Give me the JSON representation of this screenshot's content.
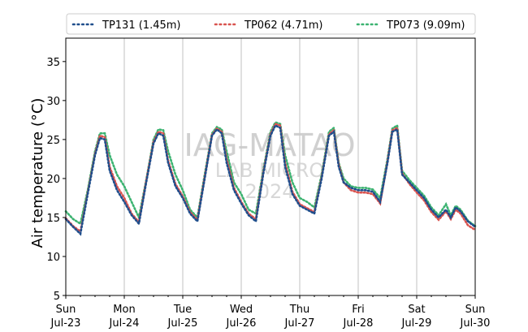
{
  "chart_data": {
    "type": "line",
    "title": "",
    "xlabel": "",
    "ylabel": "Air temperature (°C)",
    "ylim": [
      5,
      38
    ],
    "xlim": [
      "2024-07-23",
      "2024-07-30"
    ],
    "yticks": [
      "5",
      "10",
      "15",
      "20",
      "25",
      "30",
      "35"
    ],
    "xtick_labels": [
      {
        "day": "Sun",
        "date": "Jul-23"
      },
      {
        "day": "Mon",
        "date": "Jul-24"
      },
      {
        "day": "Tue",
        "date": "Jul-25"
      },
      {
        "day": "Wed",
        "date": "Jul-26"
      },
      {
        "day": "Thu",
        "date": "Jul-27"
      },
      {
        "day": "Fri",
        "date": "Jul-28"
      },
      {
        "day": "Sat",
        "date": "Jul-29"
      },
      {
        "day": "Sun",
        "date": "Jul-30"
      }
    ],
    "grid": "vertical",
    "legend_position": "top",
    "watermark": [
      "IAG-MATAO",
      "LAB MICRO",
      "2024"
    ],
    "series": [
      {
        "name": "TP131 (1.45m)",
        "color": "#1f4e8c",
        "points": [
          [
            "2024-07-23 00:00",
            14.8
          ],
          [
            "2024-07-23 03:00",
            13.8
          ],
          [
            "2024-07-23 06:00",
            12.9
          ],
          [
            "2024-07-23 09:00",
            18.0
          ],
          [
            "2024-07-23 12:00",
            23.0
          ],
          [
            "2024-07-23 14:00",
            25.2
          ],
          [
            "2024-07-23 16:00",
            25.0
          ],
          [
            "2024-07-23 18:00",
            21.0
          ],
          [
            "2024-07-23 21:00",
            18.5
          ],
          [
            "2024-07-24 00:00",
            17.0
          ],
          [
            "2024-07-24 03:00",
            15.3
          ],
          [
            "2024-07-24 06:00",
            14.2
          ],
          [
            "2024-07-24 09:00",
            19.5
          ],
          [
            "2024-07-24 12:00",
            24.5
          ],
          [
            "2024-07-24 14:00",
            25.8
          ],
          [
            "2024-07-24 16:00",
            25.5
          ],
          [
            "2024-07-24 18:00",
            22.0
          ],
          [
            "2024-07-24 21:00",
            19.0
          ],
          [
            "2024-07-25 00:00",
            17.5
          ],
          [
            "2024-07-25 03:00",
            15.5
          ],
          [
            "2024-07-25 06:00",
            14.5
          ],
          [
            "2024-07-25 09:00",
            20.0
          ],
          [
            "2024-07-25 12:00",
            25.5
          ],
          [
            "2024-07-25 14:00",
            26.3
          ],
          [
            "2024-07-25 16:00",
            25.8
          ],
          [
            "2024-07-25 18:00",
            22.0
          ],
          [
            "2024-07-25 21:00",
            18.5
          ],
          [
            "2024-07-26 00:00",
            16.8
          ],
          [
            "2024-07-26 03:00",
            15.3
          ],
          [
            "2024-07-26 06:00",
            14.5
          ],
          [
            "2024-07-26 09:00",
            20.5
          ],
          [
            "2024-07-26 12:00",
            25.5
          ],
          [
            "2024-07-26 14:00",
            26.8
          ],
          [
            "2024-07-26 16:00",
            26.5
          ],
          [
            "2024-07-26 18:00",
            21.5
          ],
          [
            "2024-07-26 21:00",
            18.0
          ],
          [
            "2024-07-27 00:00",
            16.5
          ],
          [
            "2024-07-27 03:00",
            16.0
          ],
          [
            "2024-07-27 06:00",
            15.5
          ],
          [
            "2024-07-27 09:00",
            20.0
          ],
          [
            "2024-07-27 12:00",
            25.5
          ],
          [
            "2024-07-27 14:00",
            26.0
          ],
          [
            "2024-07-27 16:00",
            21.5
          ],
          [
            "2024-07-27 18:00",
            19.5
          ],
          [
            "2024-07-27 21:00",
            18.8
          ],
          [
            "2024-07-28 00:00",
            18.5
          ],
          [
            "2024-07-28 03:00",
            18.5
          ],
          [
            "2024-07-28 06:00",
            18.3
          ],
          [
            "2024-07-28 09:00",
            17.0
          ],
          [
            "2024-07-28 12:00",
            22.0
          ],
          [
            "2024-07-28 14:00",
            26.0
          ],
          [
            "2024-07-28 16:00",
            26.3
          ],
          [
            "2024-07-28 18:00",
            20.5
          ],
          [
            "2024-07-28 21:00",
            19.5
          ],
          [
            "2024-07-29 00:00",
            18.5
          ],
          [
            "2024-07-29 03:00",
            17.5
          ],
          [
            "2024-07-29 06:00",
            16.0
          ],
          [
            "2024-07-29 09:00",
            15.0
          ],
          [
            "2024-07-29 12:00",
            16.0
          ],
          [
            "2024-07-29 14:00",
            15.0
          ],
          [
            "2024-07-29 16:00",
            16.3
          ],
          [
            "2024-07-29 18:00",
            15.8
          ],
          [
            "2024-07-29 21:00",
            14.5
          ],
          [
            "2024-07-30 00:00",
            13.8
          ]
        ]
      },
      {
        "name": "TP062 (4.71m)",
        "color": "#d9534f",
        "points": [
          [
            "2024-07-23 00:00",
            14.9
          ],
          [
            "2024-07-23 03:00",
            13.9
          ],
          [
            "2024-07-23 06:00",
            13.2
          ],
          [
            "2024-07-23 09:00",
            18.2
          ],
          [
            "2024-07-23 12:00",
            23.2
          ],
          [
            "2024-07-23 14:00",
            25.5
          ],
          [
            "2024-07-23 16:00",
            25.3
          ],
          [
            "2024-07-23 18:00",
            21.5
          ],
          [
            "2024-07-23 21:00",
            19.0
          ],
          [
            "2024-07-24 00:00",
            17.5
          ],
          [
            "2024-07-24 03:00",
            15.5
          ],
          [
            "2024-07-24 06:00",
            14.4
          ],
          [
            "2024-07-24 09:00",
            19.7
          ],
          [
            "2024-07-24 12:00",
            24.7
          ],
          [
            "2024-07-24 14:00",
            26.0
          ],
          [
            "2024-07-24 16:00",
            25.8
          ],
          [
            "2024-07-24 18:00",
            22.3
          ],
          [
            "2024-07-24 21:00",
            19.3
          ],
          [
            "2024-07-25 00:00",
            17.7
          ],
          [
            "2024-07-25 03:00",
            15.7
          ],
          [
            "2024-07-25 06:00",
            14.7
          ],
          [
            "2024-07-25 09:00",
            20.2
          ],
          [
            "2024-07-25 12:00",
            25.6
          ],
          [
            "2024-07-25 14:00",
            26.4
          ],
          [
            "2024-07-25 16:00",
            26.0
          ],
          [
            "2024-07-25 18:00",
            22.5
          ],
          [
            "2024-07-25 21:00",
            18.8
          ],
          [
            "2024-07-26 00:00",
            17.0
          ],
          [
            "2024-07-26 03:00",
            15.5
          ],
          [
            "2024-07-26 06:00",
            14.8
          ],
          [
            "2024-07-26 09:00",
            20.7
          ],
          [
            "2024-07-26 12:00",
            25.7
          ],
          [
            "2024-07-26 14:00",
            27.0
          ],
          [
            "2024-07-26 16:00",
            26.8
          ],
          [
            "2024-07-26 18:00",
            22.0
          ],
          [
            "2024-07-26 21:00",
            18.3
          ],
          [
            "2024-07-27 00:00",
            16.7
          ],
          [
            "2024-07-27 03:00",
            16.2
          ],
          [
            "2024-07-27 06:00",
            15.7
          ],
          [
            "2024-07-27 09:00",
            20.2
          ],
          [
            "2024-07-27 12:00",
            25.7
          ],
          [
            "2024-07-27 14:00",
            26.2
          ],
          [
            "2024-07-27 16:00",
            21.8
          ],
          [
            "2024-07-27 18:00",
            19.5
          ],
          [
            "2024-07-27 21:00",
            18.5
          ],
          [
            "2024-07-28 00:00",
            18.2
          ],
          [
            "2024-07-28 03:00",
            18.2
          ],
          [
            "2024-07-28 06:00",
            18.0
          ],
          [
            "2024-07-28 09:00",
            16.8
          ],
          [
            "2024-07-28 12:00",
            22.2
          ],
          [
            "2024-07-28 14:00",
            26.2
          ],
          [
            "2024-07-28 16:00",
            26.5
          ],
          [
            "2024-07-28 18:00",
            20.7
          ],
          [
            "2024-07-28 21:00",
            19.3
          ],
          [
            "2024-07-29 00:00",
            18.2
          ],
          [
            "2024-07-29 03:00",
            17.2
          ],
          [
            "2024-07-29 06:00",
            15.7
          ],
          [
            "2024-07-29 09:00",
            14.7
          ],
          [
            "2024-07-29 12:00",
            15.8
          ],
          [
            "2024-07-29 14:00",
            14.8
          ],
          [
            "2024-07-29 16:00",
            16.0
          ],
          [
            "2024-07-29 18:00",
            15.5
          ],
          [
            "2024-07-29 21:00",
            14.0
          ],
          [
            "2024-07-30 00:00",
            13.4
          ]
        ]
      },
      {
        "name": "TP073 (9.09m)",
        "color": "#3cb371",
        "points": [
          [
            "2024-07-23 00:00",
            15.8
          ],
          [
            "2024-07-23 03:00",
            14.8
          ],
          [
            "2024-07-23 06:00",
            14.2
          ],
          [
            "2024-07-23 09:00",
            18.5
          ],
          [
            "2024-07-23 12:00",
            23.5
          ],
          [
            "2024-07-23 14:00",
            25.8
          ],
          [
            "2024-07-23 16:00",
            25.8
          ],
          [
            "2024-07-23 18:00",
            23.0
          ],
          [
            "2024-07-23 21:00",
            20.5
          ],
          [
            "2024-07-24 00:00",
            19.0
          ],
          [
            "2024-07-24 03:00",
            17.0
          ],
          [
            "2024-07-24 06:00",
            15.0
          ],
          [
            "2024-07-24 09:00",
            19.8
          ],
          [
            "2024-07-24 12:00",
            25.0
          ],
          [
            "2024-07-24 14:00",
            26.3
          ],
          [
            "2024-07-24 16:00",
            26.2
          ],
          [
            "2024-07-24 18:00",
            23.5
          ],
          [
            "2024-07-24 21:00",
            20.5
          ],
          [
            "2024-07-25 00:00",
            18.5
          ],
          [
            "2024-07-25 03:00",
            16.0
          ],
          [
            "2024-07-25 06:00",
            15.0
          ],
          [
            "2024-07-25 09:00",
            20.5
          ],
          [
            "2024-07-25 12:00",
            25.8
          ],
          [
            "2024-07-25 14:00",
            26.6
          ],
          [
            "2024-07-25 16:00",
            26.3
          ],
          [
            "2024-07-25 18:00",
            23.5
          ],
          [
            "2024-07-25 21:00",
            19.5
          ],
          [
            "2024-07-26 00:00",
            18.0
          ],
          [
            "2024-07-26 03:00",
            16.0
          ],
          [
            "2024-07-26 06:00",
            15.5
          ],
          [
            "2024-07-26 09:00",
            21.0
          ],
          [
            "2024-07-26 12:00",
            26.0
          ],
          [
            "2024-07-26 14:00",
            27.2
          ],
          [
            "2024-07-26 16:00",
            27.0
          ],
          [
            "2024-07-26 18:00",
            23.0
          ],
          [
            "2024-07-26 21:00",
            19.5
          ],
          [
            "2024-07-27 00:00",
            17.5
          ],
          [
            "2024-07-27 03:00",
            17.0
          ],
          [
            "2024-07-27 06:00",
            16.3
          ],
          [
            "2024-07-27 09:00",
            20.5
          ],
          [
            "2024-07-27 12:00",
            26.0
          ],
          [
            "2024-07-27 14:00",
            26.5
          ],
          [
            "2024-07-27 16:00",
            22.0
          ],
          [
            "2024-07-27 18:00",
            20.0
          ],
          [
            "2024-07-27 21:00",
            19.0
          ],
          [
            "2024-07-28 00:00",
            18.8
          ],
          [
            "2024-07-28 03:00",
            18.8
          ],
          [
            "2024-07-28 06:00",
            18.6
          ],
          [
            "2024-07-28 09:00",
            17.5
          ],
          [
            "2024-07-28 12:00",
            22.5
          ],
          [
            "2024-07-28 14:00",
            26.4
          ],
          [
            "2024-07-28 16:00",
            26.8
          ],
          [
            "2024-07-28 18:00",
            21.0
          ],
          [
            "2024-07-28 21:00",
            19.8
          ],
          [
            "2024-07-29 00:00",
            18.8
          ],
          [
            "2024-07-29 03:00",
            17.8
          ],
          [
            "2024-07-29 06:00",
            16.3
          ],
          [
            "2024-07-29 09:00",
            15.3
          ],
          [
            "2024-07-29 12:00",
            16.7
          ],
          [
            "2024-07-29 14:00",
            15.3
          ],
          [
            "2024-07-29 16:00",
            16.5
          ],
          [
            "2024-07-29 18:00",
            16.0
          ],
          [
            "2024-07-29 21:00",
            14.6
          ],
          [
            "2024-07-30 00:00",
            13.9
          ]
        ]
      }
    ]
  }
}
